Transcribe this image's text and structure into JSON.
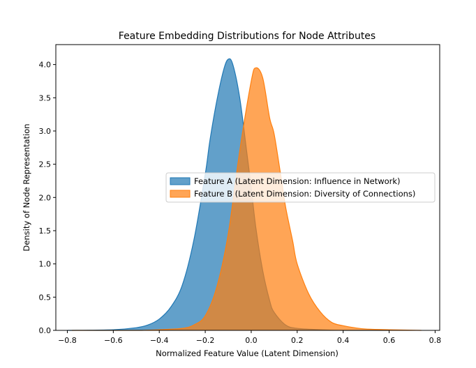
{
  "chart_data": {
    "type": "area",
    "title": "Feature Embedding Distributions for Node Attributes",
    "xlabel": "Normalized Feature Value (Latent Dimension)",
    "ylabel": "Density of Node Representation",
    "xlim": [
      -0.85,
      0.82
    ],
    "ylim": [
      0,
      4.3
    ],
    "xticks": [
      -0.8,
      -0.6,
      -0.4,
      -0.2,
      0.0,
      0.2,
      0.4,
      0.6,
      0.8
    ],
    "xtick_labels": [
      "−0.8",
      "−0.6",
      "−0.4",
      "−0.2",
      "0.0",
      "0.2",
      "0.4",
      "0.6",
      "0.8"
    ],
    "yticks": [
      0.0,
      0.5,
      1.0,
      1.5,
      2.0,
      2.5,
      3.0,
      3.5,
      4.0
    ],
    "ytick_labels": [
      "0.0",
      "0.5",
      "1.0",
      "1.5",
      "2.0",
      "2.5",
      "3.0",
      "3.5",
      "4.0"
    ],
    "grid": false,
    "legend_position": "center-right",
    "series": [
      {
        "name": "Feature A (Latent Dimension: Influence in Network)",
        "color": "#1f77b4",
        "x": [
          -0.8,
          -0.6,
          -0.5,
          -0.45,
          -0.4,
          -0.35,
          -0.3,
          -0.25,
          -0.2,
          -0.18,
          -0.15,
          -0.12,
          -0.1,
          -0.08,
          -0.05,
          -0.02,
          0.0,
          0.02,
          0.05,
          0.08,
          0.1,
          0.15,
          0.2,
          0.3,
          0.4,
          0.5,
          0.6
        ],
        "y": [
          0.0,
          0.01,
          0.04,
          0.08,
          0.17,
          0.35,
          0.68,
          1.35,
          2.35,
          2.85,
          3.45,
          3.92,
          4.08,
          4.0,
          3.5,
          2.7,
          2.15,
          1.55,
          0.9,
          0.45,
          0.27,
          0.08,
          0.03,
          0.01,
          0.0,
          0.0,
          0.0
        ]
      },
      {
        "name": "Feature B (Latent Dimension: Diversity of Connections)",
        "color": "#ff7f0e",
        "x": [
          -0.78,
          -0.5,
          -0.4,
          -0.3,
          -0.25,
          -0.2,
          -0.15,
          -0.1,
          -0.05,
          0.0,
          0.02,
          0.05,
          0.08,
          0.1,
          0.13,
          0.15,
          0.18,
          0.2,
          0.25,
          0.3,
          0.35,
          0.4,
          0.45,
          0.5,
          0.6,
          0.74
        ],
        "y": [
          0.0,
          0.0,
          0.01,
          0.03,
          0.08,
          0.22,
          0.65,
          1.45,
          2.7,
          3.75,
          3.95,
          3.8,
          3.2,
          2.95,
          2.3,
          1.85,
          1.35,
          1.0,
          0.55,
          0.28,
          0.12,
          0.07,
          0.04,
          0.02,
          0.01,
          0.0
        ]
      }
    ]
  }
}
